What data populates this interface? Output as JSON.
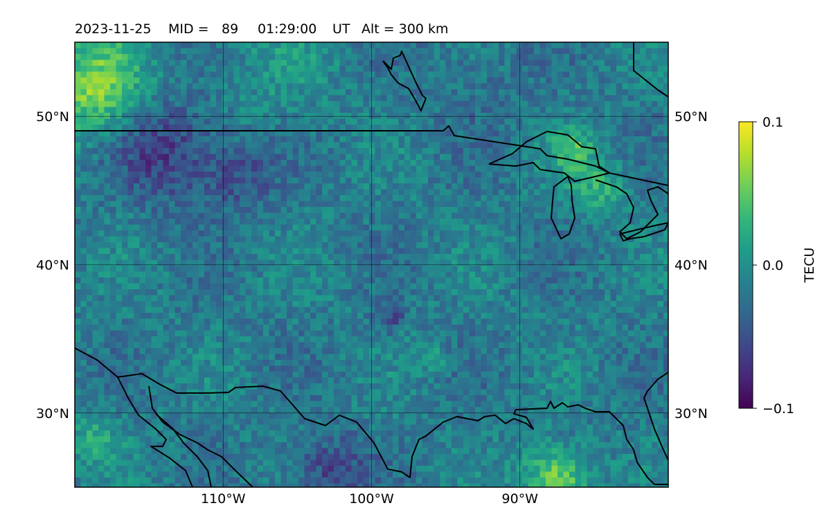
{
  "title": {
    "date": "2023-11-25",
    "mid_label": "MID =",
    "mid_value": "89",
    "time": "01:29:00",
    "time_unit": "UT",
    "alt_label": "Alt = 300 km"
  },
  "map": {
    "lon_range": [
      -120,
      -80
    ],
    "lat_range": [
      25,
      55
    ],
    "x_ticks": [
      {
        "lon": -110,
        "label": "110°W"
      },
      {
        "lon": -100,
        "label": "100°W"
      },
      {
        "lon": -90,
        "label": "90°W"
      }
    ],
    "y_ticks": [
      {
        "lat": 50,
        "label": "50°N"
      },
      {
        "lat": 40,
        "label": "40°N"
      },
      {
        "lat": 30,
        "label": "30°N"
      }
    ],
    "grid": true,
    "colormap": "viridis"
  },
  "colorbar": {
    "label": "TECU",
    "min": -0.1,
    "max": 0.1,
    "ticks": [
      {
        "value": 0.1,
        "label": "0.1"
      },
      {
        "value": 0.0,
        "label": "0.0"
      },
      {
        "value": -0.1,
        "label": "−0.1"
      }
    ]
  },
  "colors": {
    "viridis_stops": [
      "#440154",
      "#482878",
      "#3e4989",
      "#31688e",
      "#26828e",
      "#1f9e89",
      "#35b779",
      "#6ece58",
      "#b5de2b",
      "#fde725"
    ],
    "coastline": "#000000"
  }
}
